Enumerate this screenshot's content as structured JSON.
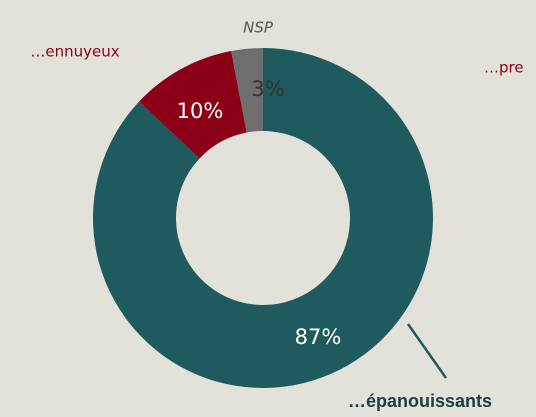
{
  "chart_data": {
    "type": "donut",
    "categories": [
      "…épanouissants",
      "…ennuyeux",
      "NSP"
    ],
    "values": [
      87,
      10,
      3
    ],
    "value_labels": [
      "87%",
      "10%",
      "3%"
    ],
    "colors": [
      "#1f5a5e",
      "#8b0016",
      "#6e6e6e"
    ],
    "annotations": [
      "…pre"
    ]
  }
}
